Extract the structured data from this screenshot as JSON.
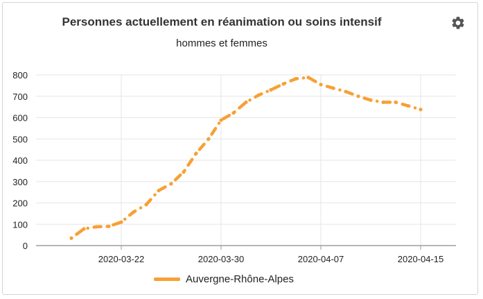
{
  "chart_data": {
    "type": "line",
    "title": "Personnes actuellement en réanimation ou soins intensif",
    "subtitle": "hommes et femmes",
    "xlabel": "",
    "ylabel": "",
    "ylim": [
      0,
      800
    ],
    "y_ticks": [
      "0",
      "100",
      "200",
      "300",
      "400",
      "500",
      "600",
      "700",
      "800"
    ],
    "x_ticks": [
      "2020-03-22",
      "2020-03-30",
      "2020-04-07",
      "2020-04-15"
    ],
    "grid": true,
    "legend_position": "bottom",
    "series": [
      {
        "name": "Auvergne-Rhône-Alpes",
        "color": "#f7a035",
        "line_style": "dash-dot",
        "points": [
          [
            "2020-03-18",
            35
          ],
          [
            "2020-03-19",
            78
          ],
          [
            "2020-03-20",
            88
          ],
          [
            "2020-03-21",
            90
          ],
          [
            "2020-03-22",
            110
          ],
          [
            "2020-03-23",
            158
          ],
          [
            "2020-03-24",
            192
          ],
          [
            "2020-03-25",
            258
          ],
          [
            "2020-03-26",
            290
          ],
          [
            "2020-03-27",
            345
          ],
          [
            "2020-03-28",
            432
          ],
          [
            "2020-03-29",
            500
          ],
          [
            "2020-03-30",
            588
          ],
          [
            "2020-03-31",
            622
          ],
          [
            "2020-04-01",
            672
          ],
          [
            "2020-04-02",
            705
          ],
          [
            "2020-04-03",
            730
          ],
          [
            "2020-04-04",
            758
          ],
          [
            "2020-04-05",
            782
          ],
          [
            "2020-04-06",
            788
          ],
          [
            "2020-04-07",
            755
          ],
          [
            "2020-04-08",
            738
          ],
          [
            "2020-04-09",
            722
          ],
          [
            "2020-04-10",
            700
          ],
          [
            "2020-04-11",
            682
          ],
          [
            "2020-04-12",
            672
          ],
          [
            "2020-04-13",
            672
          ],
          [
            "2020-04-14",
            655
          ],
          [
            "2020-04-15",
            638
          ]
        ]
      }
    ]
  },
  "toolbar": {
    "settings_icon": "gear-icon"
  }
}
